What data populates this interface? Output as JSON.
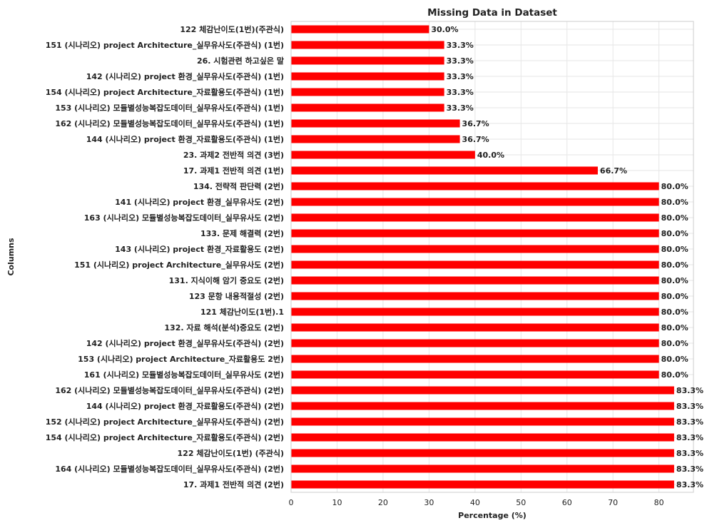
{
  "chart_data": {
    "type": "bar",
    "orientation": "horizontal",
    "title": "Missing Data in Dataset",
    "xlabel": "Percentage (%)",
    "ylabel": "Columns",
    "xlim": [
      0,
      87.5
    ],
    "xticks": [
      0,
      10,
      20,
      30,
      40,
      50,
      60,
      70,
      80
    ],
    "grid": true,
    "bar_color": "#ff0000",
    "categories": [
      "122 체감난이도(1번)(주관식)",
      "151 (시나리오) project Architecture_실무유사도(주관식) (1번)",
      "26. 시험관련 하고싶은 말",
      "142 (시나리오) project 환경_실무유사도(주관식) (1번)",
      "154 (시나리오) project Architecture_자료활용도(주관식) (1번)",
      "153 (시나리오) 모듈별성능복잡도데이터_실무유사도(주관식) (1번)",
      "162 (시나리오) 모듈별성능복잡도데이터_실무유사도(주관식) (1번)",
      "144 (시나리오) project 환경_자료활용도(주관식) (1번)",
      "23. 과제2 전반적 의견 (3번)",
      "17. 과제1 전반적 의견 (1번)",
      "134. 전략적 판단력 (2번)",
      "141 (시나리오) project 환경_실무유사도 (2번)",
      "163 (시나리오) 모듈별성능복잡도데이터_실무유사도 (2번)",
      "133. 문제 해결력 (2번)",
      "143 (시나리오) project 환경_자료활용도 (2번)",
      "151 (시나리오) project Architecture_실무유사도 (2번)",
      "131. 지식이해 암기 중요도 (2번)",
      "123 문항 내용적절성 (2번)",
      "121 체감난이도(1번).1",
      "132. 자료 해석(분석)중요도 (2번)",
      "142 (시나리오) project 환경_실무유사도(주관식) (2번)",
      "153 (시나리오) project Architecture_자료활용도 2번)",
      "161 (시나리오) 모듈별성능복잡도데이터_실무유사도 (2번)",
      "162 (시나리오) 모듈별성능복잡도데이터_실무유사도(주관식) (2번)",
      "144 (시나리오) project 환경_자료활용도(주관식) (2번)",
      "152 (시나리오) project Architecture_실무유사도(주관식) (2번)",
      "154 (시나리오) project Architecture_자료활용도(주관식) (2번)",
      "122 체감난이도(1번) (주관식)",
      "164 (시나리오) 모듈별성능복잡도데이터_실무유사도(주관식) (2번)",
      "17. 과제1 전반적 의견 (2번)"
    ],
    "values": [
      30.0,
      33.3,
      33.3,
      33.3,
      33.3,
      33.3,
      36.7,
      36.7,
      40.0,
      66.7,
      80.0,
      80.0,
      80.0,
      80.0,
      80.0,
      80.0,
      80.0,
      80.0,
      80.0,
      80.0,
      80.0,
      80.0,
      80.0,
      83.3,
      83.3,
      83.3,
      83.3,
      83.3,
      83.3,
      83.3
    ],
    "value_labels": [
      "30.0%",
      "33.3%",
      "33.3%",
      "33.3%",
      "33.3%",
      "33.3%",
      "36.7%",
      "36.7%",
      "40.0%",
      "66.7%",
      "80.0%",
      "80.0%",
      "80.0%",
      "80.0%",
      "80.0%",
      "80.0%",
      "80.0%",
      "80.0%",
      "80.0%",
      "80.0%",
      "80.0%",
      "80.0%",
      "80.0%",
      "83.3%",
      "83.3%",
      "83.3%",
      "83.3%",
      "83.3%",
      "83.3%",
      "83.3%"
    ]
  }
}
